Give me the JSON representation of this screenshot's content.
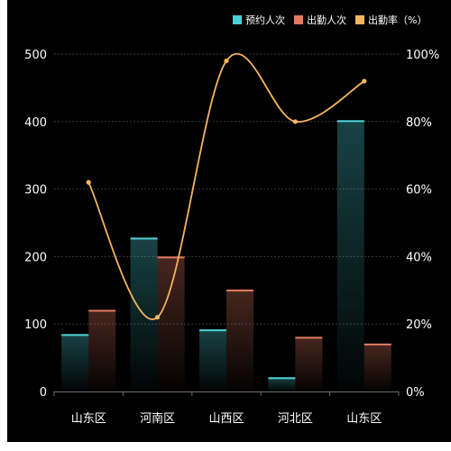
{
  "chart_data": {
    "type": "bar",
    "categories": [
      "山东区",
      "河南区",
      "山西区",
      "河北区",
      "山东区"
    ],
    "series": [
      {
        "name": "预约人次",
        "type": "bar",
        "values": [
          85,
          228,
          92,
          21,
          402
        ],
        "color": "#4dd0d6"
      },
      {
        "name": "出勤人次",
        "type": "bar",
        "values": [
          121,
          200,
          151,
          81,
          71
        ],
        "color": "#e07a5f"
      },
      {
        "name": "出勤率（%）",
        "type": "line",
        "axis": "right",
        "values": [
          62,
          22,
          98,
          80,
          92
        ],
        "color": "#f5b55e"
      }
    ],
    "y_left": {
      "ylim": [
        0,
        500
      ],
      "ticks": [
        "0",
        "100",
        "200",
        "300",
        "400",
        "500"
      ]
    },
    "y_right": {
      "ylim": [
        0,
        100
      ],
      "ticks": [
        "0%",
        "20%",
        "40%",
        "60%",
        "80%",
        "100%"
      ]
    },
    "grid": true,
    "legend": "top-right"
  }
}
